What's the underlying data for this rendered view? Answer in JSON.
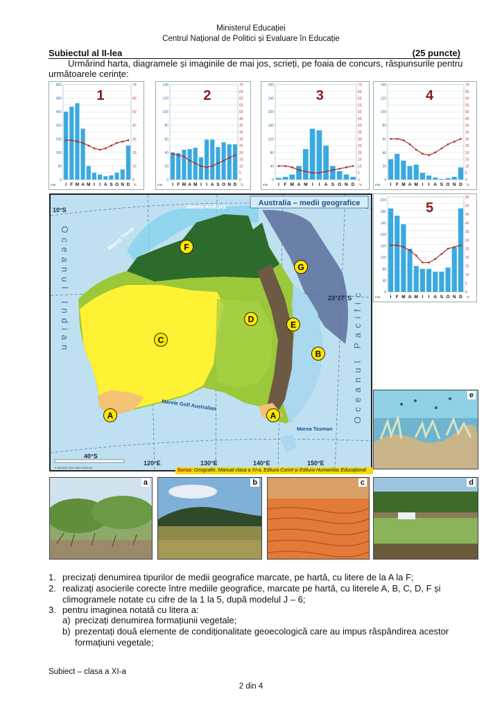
{
  "header": {
    "line1": "Ministerul Educației",
    "line2": "Centrul Național de Politici și Evaluare în Educație"
  },
  "subject": {
    "title": "Subiectul al II-lea",
    "points": "(25 puncte)"
  },
  "intro": "Urmărind harta, diagramele și imaginile de mai jos, scrieți, pe foaia de concurs, răspunsurile pentru următoarele cerințe:",
  "months": [
    "I",
    "F",
    "M",
    "A",
    "M",
    "I",
    "I",
    "A",
    "S",
    "O",
    "N",
    "D"
  ],
  "units": {
    "precip": "mm",
    "temp": "°C"
  },
  "climograms": [
    {
      "label": "1",
      "precip": [
        400,
        430,
        450,
        300,
        80,
        40,
        30,
        20,
        25,
        40,
        60,
        200
      ],
      "temp": [
        29,
        29,
        28,
        27,
        25,
        23,
        22,
        23,
        25,
        27,
        28,
        29
      ],
      "pmax": 560,
      "ptick": 40,
      "tmax": 70,
      "ttick": 10
    },
    {
      "label": "2",
      "precip": [
        40,
        39,
        44,
        45,
        47,
        33,
        59,
        59,
        48,
        55,
        52,
        52
      ],
      "temp": [
        19,
        18,
        17,
        14,
        12,
        10,
        9,
        10,
        12,
        14,
        16,
        18
      ],
      "pmax": 140,
      "ptick": 10,
      "tmax": 70,
      "ttick": 5
    },
    {
      "label": "3",
      "precip": [
        5,
        8,
        15,
        40,
        90,
        150,
        145,
        100,
        40,
        25,
        15,
        8
      ],
      "temp": [
        10,
        10,
        9,
        7,
        6,
        5,
        5,
        6,
        7,
        8,
        9,
        10
      ],
      "pmax": 280,
      "ptick": 20,
      "tmax": 70,
      "ttick": 5
    },
    {
      "label": "4",
      "precip": [
        30,
        38,
        28,
        20,
        22,
        10,
        6,
        3,
        1,
        2,
        4,
        18
      ],
      "temp": [
        30,
        30,
        29,
        26,
        22,
        19,
        18,
        20,
        23,
        26,
        28,
        30
      ],
      "pmax": 140,
      "ptick": 10,
      "tmax": 70,
      "ttick": 5
    },
    {
      "label": "5",
      "precip": [
        290,
        265,
        235,
        150,
        90,
        80,
        80,
        70,
        70,
        85,
        155,
        290
      ],
      "temp": [
        27,
        27,
        26,
        24,
        21,
        17,
        17,
        19,
        22,
        25,
        26,
        27
      ],
      "pmax": 330,
      "ptick": 20,
      "tmax": 55,
      "ttick": 5
    }
  ],
  "map": {
    "title": "Australia – medii geografice",
    "lat_top": "10°S",
    "lat_tropic": "23°27' S",
    "lat_bottom": "40°S",
    "lon": [
      "120°E",
      "130°E",
      "140°E",
      "150°E"
    ],
    "ocean_left": "Oceanul Indian",
    "ocean_right": "Oceanul Pacific",
    "sea_timor": "Marea Timor",
    "sea_arafura": "Marea Arafura",
    "gulf": "Marele Golf Australian",
    "sea_tasman": "Marea Tasman",
    "scale": "0  400  800  1200  1600  2000 km",
    "markers": [
      "A",
      "A",
      "B",
      "C",
      "D",
      "E",
      "F",
      "G"
    ],
    "colors": {
      "desert": "#fff133",
      "savanna": "#9bc83a",
      "forest": "#2d6b2d",
      "mediterranean": "#f4c276",
      "temperate": "#a9d8ef",
      "reef": "#5a6f9c",
      "mountains": "#6d5a44"
    }
  },
  "source": {
    "prefix": "Sursa:",
    "text": "Geografie, Manual clasa a XI-a, Editura Corint și Editura Humanitas Educațional"
  },
  "photos": [
    "a",
    "b",
    "c",
    "d",
    "e"
  ],
  "questions": [
    {
      "num": "1.",
      "text": "precizați denumirea tipurilor de medii geografice marcate, pe hartă, cu litere de la A la F;"
    },
    {
      "num": "2.",
      "text": "realizați asocierile corecte între mediile geografice, marcate pe hartă, cu literele A, B, C, D, F și climogramele notate cu cifre de la 1 la 5, după modelul J – 6;"
    },
    {
      "num": "3.",
      "text": "pentru imaginea notată cu litera a:"
    },
    {
      "num": "a)",
      "text": "precizați denumirea formațiunii vegetale;"
    },
    {
      "num": "b)",
      "text": "prezentați două elemente de condiționalitate geoecologică care au impus răspândirea acestor formațiuni vegetale;"
    }
  ],
  "footer": {
    "left": "Subiect – clasa a XI-a",
    "page": "2 din 4"
  }
}
